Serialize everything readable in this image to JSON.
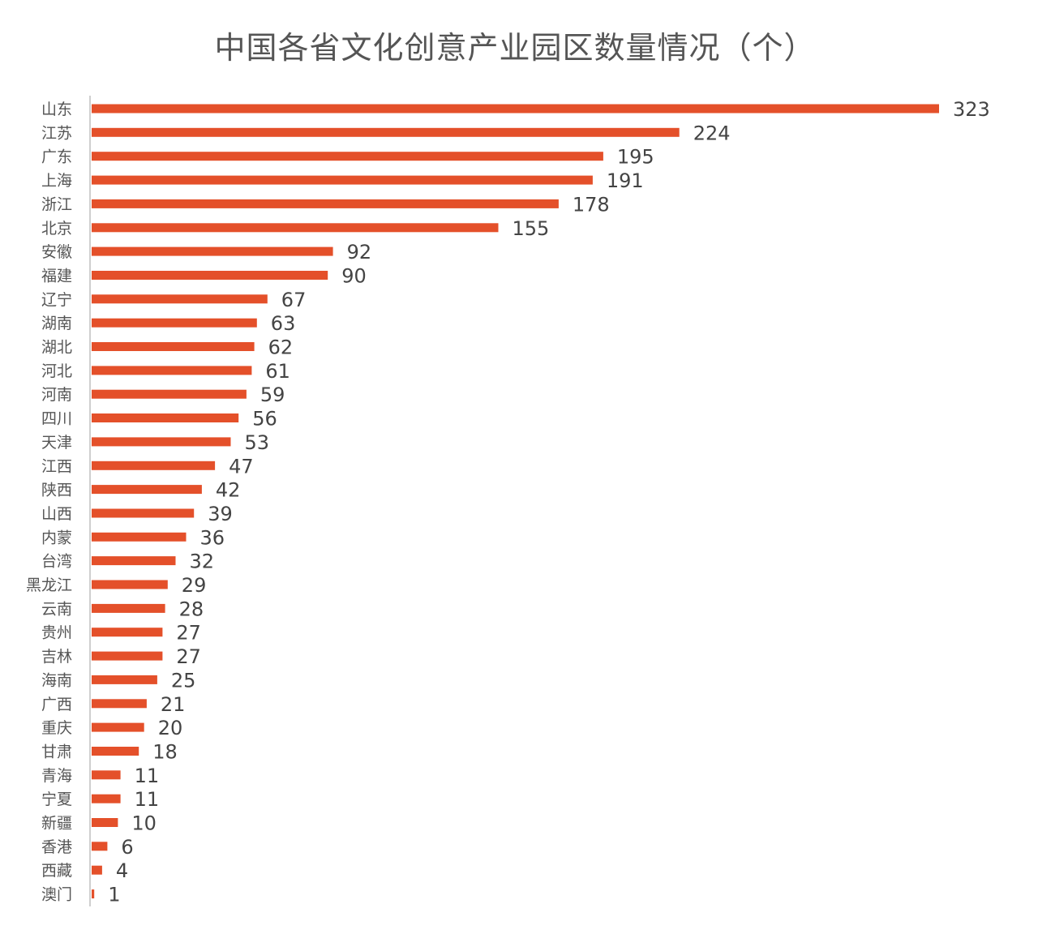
{
  "chart_data": {
    "type": "bar",
    "orientation": "horizontal",
    "title": "中国各省文化创意产业园区数量情况（个）",
    "categories": [
      "山东",
      "江苏",
      "广东",
      "上海",
      "浙江",
      "北京",
      "安徽",
      "福建",
      "辽宁",
      "湖南",
      "湖北",
      "河北",
      "河南",
      "四川",
      "天津",
      "江西",
      "陕西",
      "山西",
      "内蒙",
      "台湾",
      "黑龙江",
      "云南",
      "贵州",
      "吉林",
      "海南",
      "广西",
      "重庆",
      "甘肃",
      "青海",
      "宁夏",
      "新疆",
      "香港",
      "西藏",
      "澳门"
    ],
    "values": [
      323,
      224,
      195,
      191,
      178,
      155,
      92,
      90,
      67,
      63,
      62,
      61,
      59,
      56,
      53,
      47,
      42,
      39,
      36,
      32,
      29,
      28,
      27,
      27,
      25,
      21,
      20,
      18,
      11,
      11,
      10,
      6,
      4,
      1
    ],
    "xlim": [
      0,
      323
    ],
    "grid": false,
    "legend": "none",
    "data_labels": true,
    "bar_color": "#E4502A",
    "axis_color": "#CFCFCF"
  }
}
